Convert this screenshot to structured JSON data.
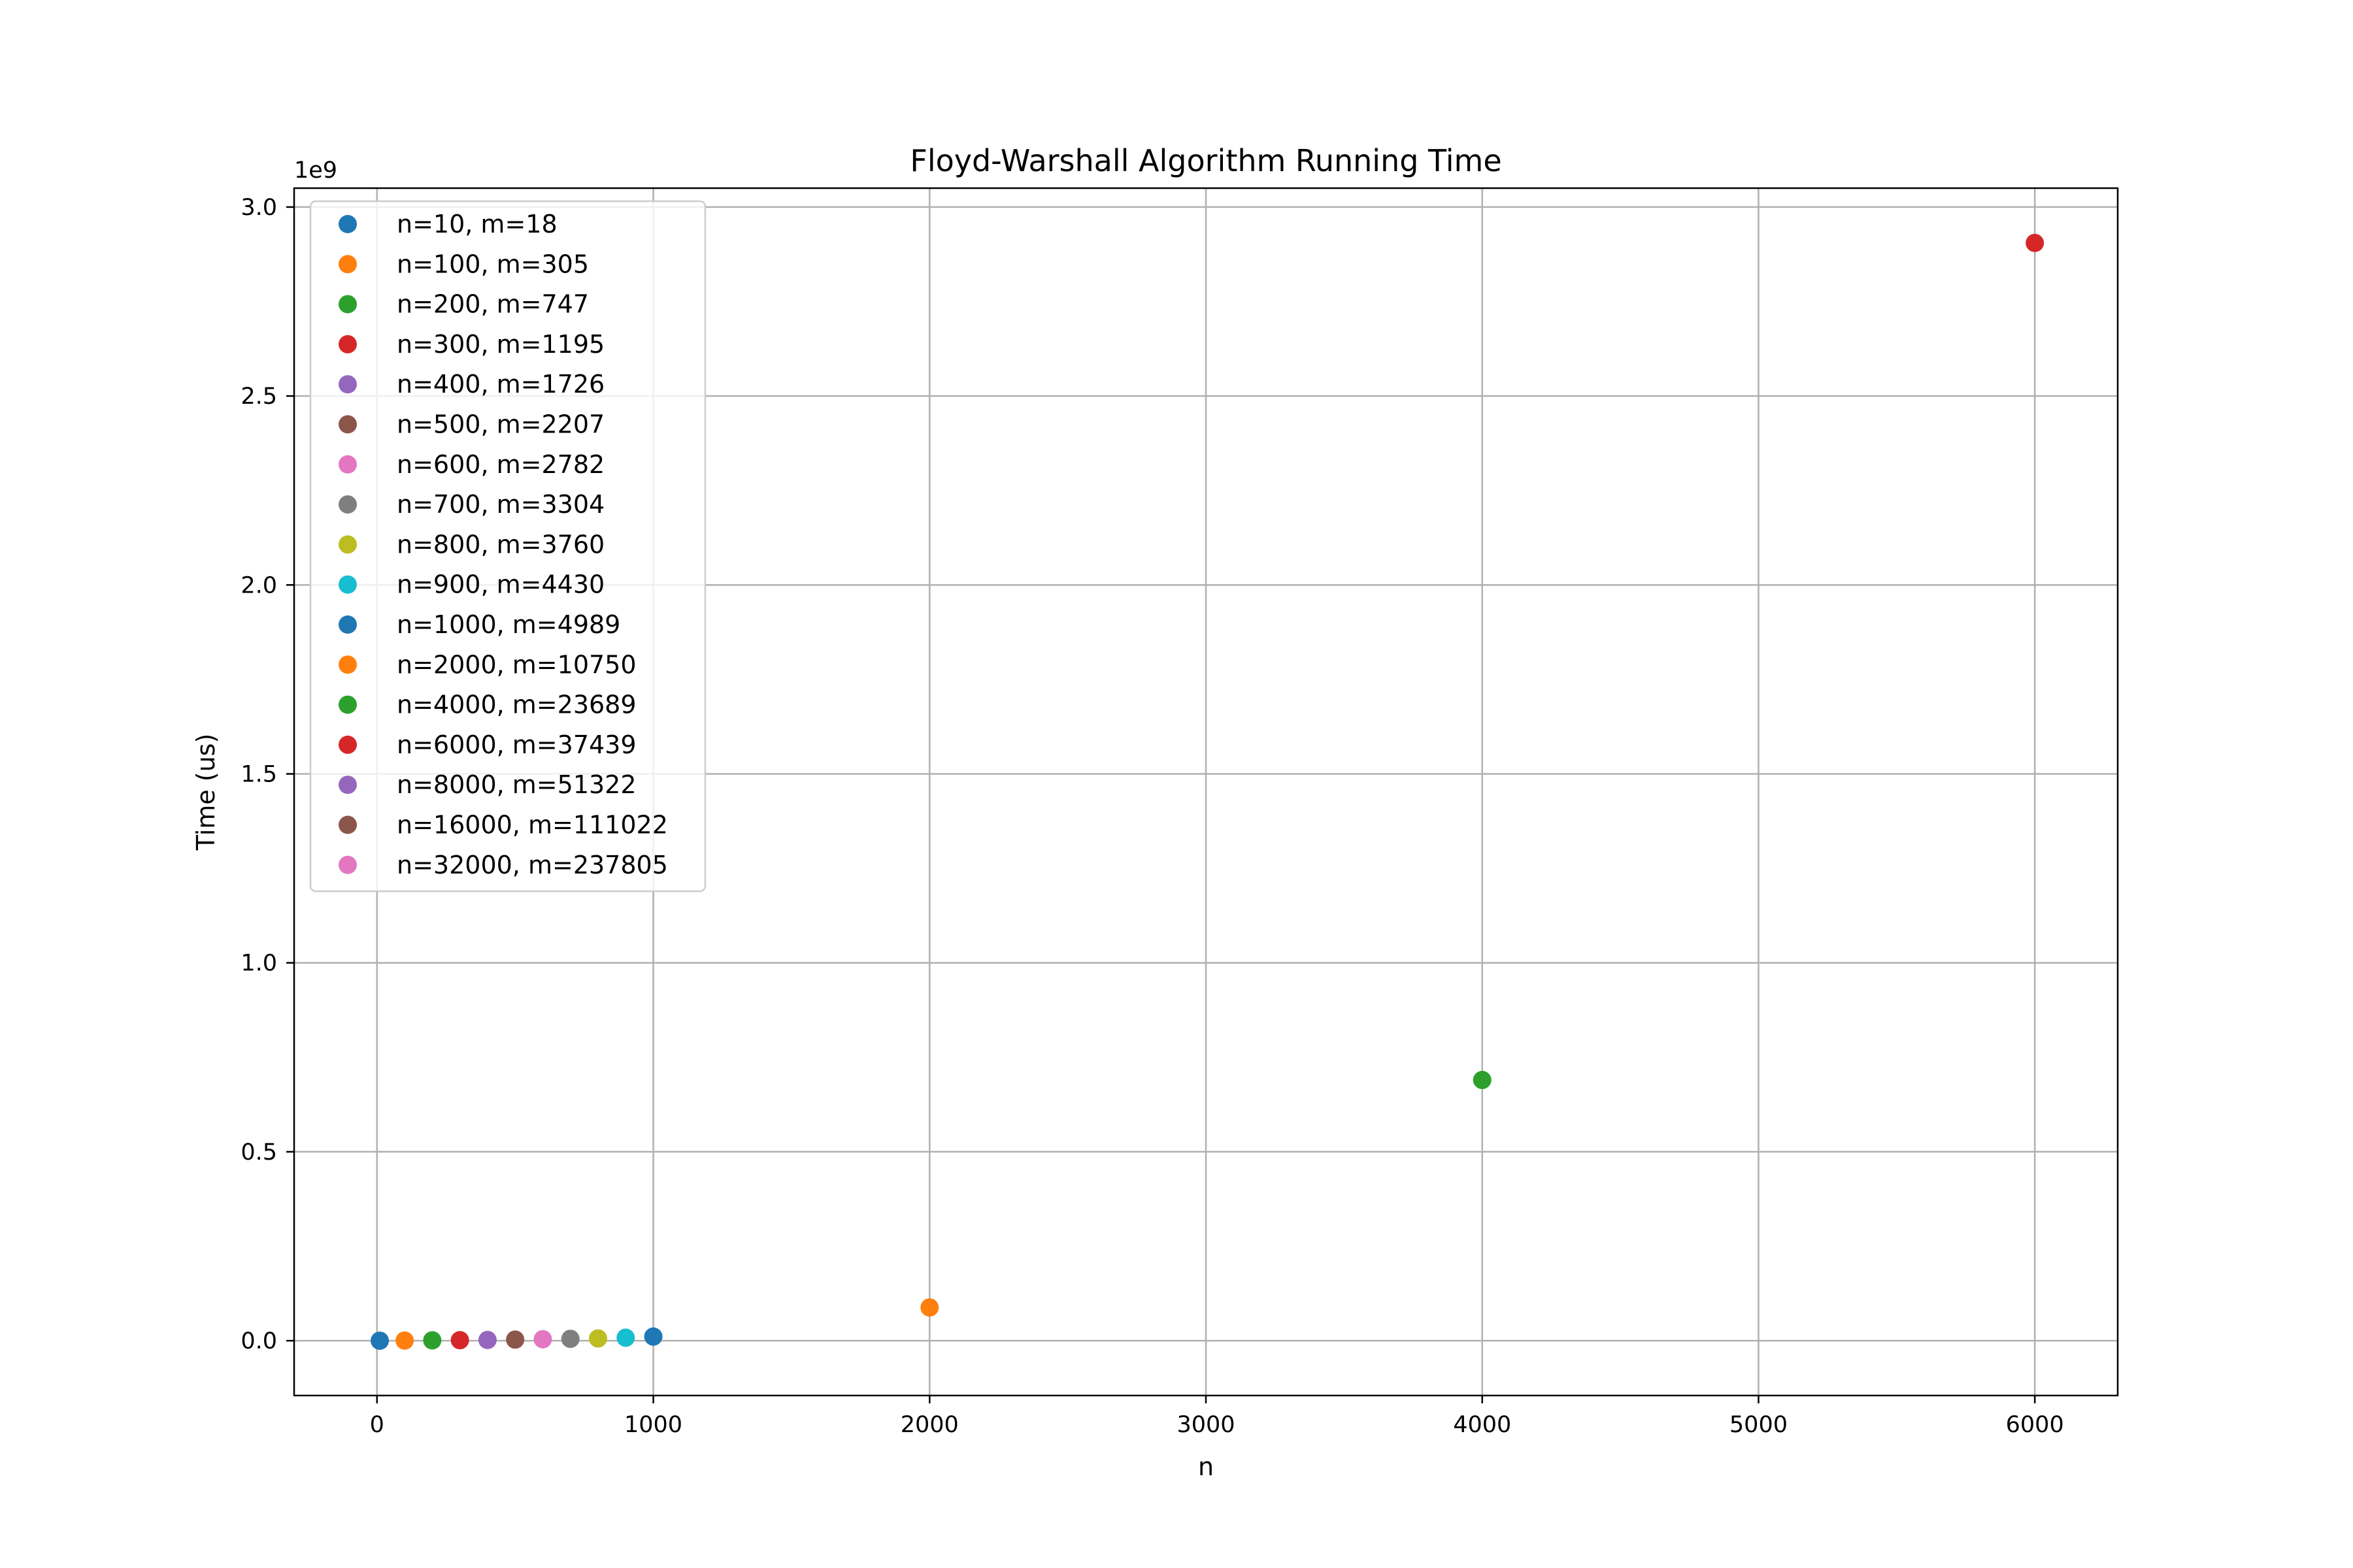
{
  "chart_data": {
    "type": "scatter",
    "title": "Floyd-Warshall Algorithm Running Time",
    "xlabel": "n",
    "ylabel": "Time (us)",
    "y_offset_label": "1e9",
    "xlim": [
      -300,
      6300
    ],
    "ylim": [
      -0.145,
      3.05
    ],
    "x_ticks": [
      0,
      1000,
      2000,
      3000,
      4000,
      5000,
      6000
    ],
    "x_tick_labels": [
      "0",
      "1000",
      "2000",
      "3000",
      "4000",
      "5000",
      "6000"
    ],
    "y_ticks": [
      0.0,
      0.5,
      1.0,
      1.5,
      2.0,
      2.5,
      3.0
    ],
    "y_tick_labels": [
      "0.0",
      "0.5",
      "1.0",
      "1.5",
      "2.0",
      "2.5",
      "3.0"
    ],
    "grid": true,
    "legend_position": "top-left",
    "series": [
      {
        "name": "n=10, m=18",
        "color": "#1f77b4",
        "x": 10,
        "y": 0.0001
      },
      {
        "name": "n=100, m=305",
        "color": "#ff7f0e",
        "x": 100,
        "y": 0.0005
      },
      {
        "name": "n=200, m=747",
        "color": "#2ca02c",
        "x": 200,
        "y": 0.001
      },
      {
        "name": "n=300, m=1195",
        "color": "#d62728",
        "x": 300,
        "y": 0.0015
      },
      {
        "name": "n=400, m=1726",
        "color": "#9467bd",
        "x": 400,
        "y": 0.002
      },
      {
        "name": "n=500, m=2207",
        "color": "#8c564b",
        "x": 500,
        "y": 0.003
      },
      {
        "name": "n=600, m=2782",
        "color": "#e377c2",
        "x": 600,
        "y": 0.004
      },
      {
        "name": "n=700, m=3304",
        "color": "#7f7f7f",
        "x": 700,
        "y": 0.005
      },
      {
        "name": "n=800, m=3760",
        "color": "#bcbd22",
        "x": 800,
        "y": 0.006
      },
      {
        "name": "n=900, m=4430",
        "color": "#17becf",
        "x": 900,
        "y": 0.008
      },
      {
        "name": "n=1000, m=4989",
        "color": "#1f77b4",
        "x": 1000,
        "y": 0.011
      },
      {
        "name": "n=2000, m=10750",
        "color": "#ff7f0e",
        "x": 2000,
        "y": 0.088
      },
      {
        "name": "n=4000, m=23689",
        "color": "#2ca02c",
        "x": 4000,
        "y": 0.69
      },
      {
        "name": "n=6000, m=37439",
        "color": "#d62728",
        "x": 6000,
        "y": 2.905
      },
      {
        "name": "n=8000, m=51322",
        "color": "#9467bd",
        "x": null,
        "y": null
      },
      {
        "name": "n=16000, m=111022",
        "color": "#8c564b",
        "x": null,
        "y": null
      },
      {
        "name": "n=32000, m=237805",
        "color": "#e377c2",
        "x": null,
        "y": null
      }
    ]
  }
}
